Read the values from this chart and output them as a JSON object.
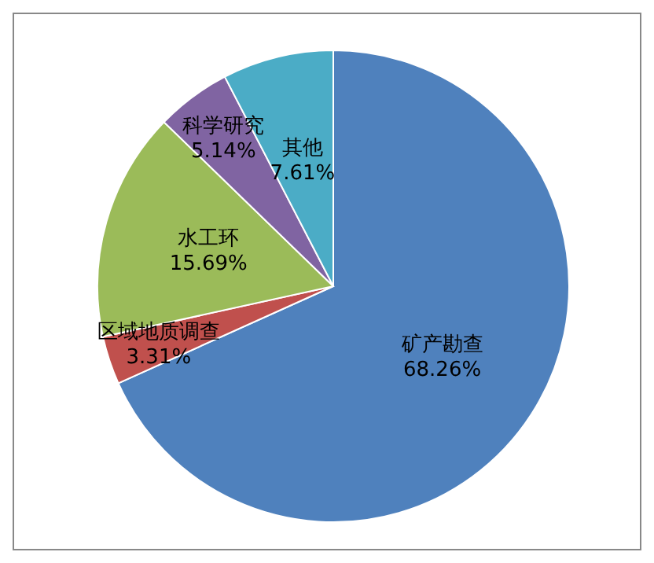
{
  "chart_data": {
    "type": "pie",
    "categories": [
      "矿产勘查",
      "区域地质调查",
      "水工环",
      "科学研究",
      "其他"
    ],
    "values": [
      68.26,
      3.31,
      15.69,
      5.14,
      7.61
    ],
    "colors": [
      "#4f81bd",
      "#c0504d",
      "#9bbb59",
      "#8064a2",
      "#4bacc6"
    ],
    "value_labels": [
      "68.26%",
      "3.31%",
      "15.69%",
      "5.14%",
      "7.61%"
    ],
    "legend": false
  }
}
